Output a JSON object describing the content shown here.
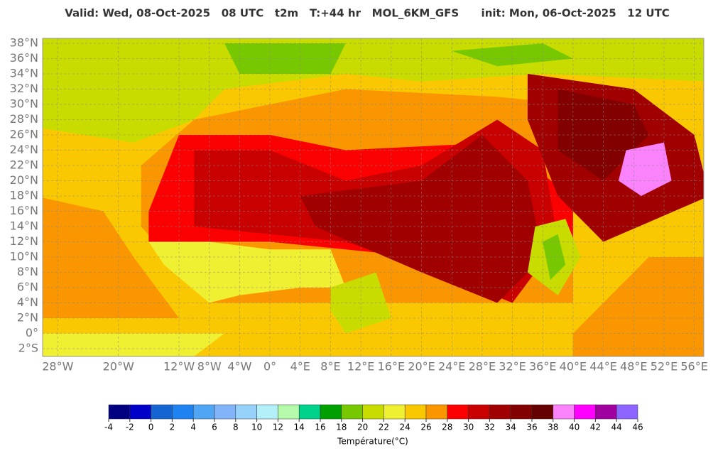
{
  "header": {
    "title": "Valid: Wed, 08-Oct-2025   08 UTC   t2m   T:+44 hr   MOL_6KM_GFS      init: Mon, 06-Oct-2025   12 UTC"
  },
  "map": {
    "lat_ticks": [
      {
        "value": 38,
        "label": "38°N"
      },
      {
        "value": 36,
        "label": "36°N"
      },
      {
        "value": 34,
        "label": "34°N"
      },
      {
        "value": 32,
        "label": "32°N"
      },
      {
        "value": 30,
        "label": "30°N"
      },
      {
        "value": 28,
        "label": "28°N"
      },
      {
        "value": 26,
        "label": "26°N"
      },
      {
        "value": 24,
        "label": "24°N"
      },
      {
        "value": 22,
        "label": "22°N"
      },
      {
        "value": 20,
        "label": "20°N"
      },
      {
        "value": 18,
        "label": "18°N"
      },
      {
        "value": 16,
        "label": "16°N"
      },
      {
        "value": 14,
        "label": "14°N"
      },
      {
        "value": 12,
        "label": "12°N"
      },
      {
        "value": 10,
        "label": "10°N"
      },
      {
        "value": 8,
        "label": "8°N"
      },
      {
        "value": 6,
        "label": "6°N"
      },
      {
        "value": 4,
        "label": "4°N"
      },
      {
        "value": 2,
        "label": "2°N"
      },
      {
        "value": 0,
        "label": "0°"
      },
      {
        "value": -2,
        "label": "2°S"
      }
    ],
    "lon_ticks": [
      {
        "value": -28,
        "label": "28°W"
      },
      {
        "value": -20,
        "label": "20°W"
      },
      {
        "value": -12,
        "label": "12°W"
      },
      {
        "value": -8,
        "label": "8°W"
      },
      {
        "value": -4,
        "label": "4°W"
      },
      {
        "value": 0,
        "label": "0°"
      },
      {
        "value": 4,
        "label": "4°E"
      },
      {
        "value": 8,
        "label": "8°E"
      },
      {
        "value": 12,
        "label": "12°E"
      },
      {
        "value": 16,
        "label": "16°E"
      },
      {
        "value": 20,
        "label": "20°E"
      },
      {
        "value": 24,
        "label": "24°E"
      },
      {
        "value": 28,
        "label": "28°E"
      },
      {
        "value": 32,
        "label": "32°E"
      },
      {
        "value": 36,
        "label": "36°E"
      },
      {
        "value": 40,
        "label": "40°E"
      },
      {
        "value": 44,
        "label": "44°E"
      },
      {
        "value": 48,
        "label": "48°E"
      },
      {
        "value": 52,
        "label": "52°E"
      },
      {
        "value": 56,
        "label": "56°E"
      }
    ]
  },
  "colorbar": {
    "ticks": [
      -4,
      -2,
      0,
      2,
      4,
      6,
      8,
      10,
      12,
      14,
      16,
      18,
      20,
      22,
      24,
      26,
      28,
      30,
      32,
      34,
      36,
      38,
      40,
      42,
      44,
      46
    ],
    "colors": [
      "#000080",
      "#0000c8",
      "#1464d2",
      "#1e82f0",
      "#50a5f5",
      "#82b4fa",
      "#96d2fa",
      "#b4f0fa",
      "#b4faaa",
      "#00d28c",
      "#00a000",
      "#78c800",
      "#c8dc00",
      "#f0f032",
      "#fac800",
      "#fa9600",
      "#fa0000",
      "#c80000",
      "#a00000",
      "#820000",
      "#640000",
      "#fa82fa",
      "#ff00ff",
      "#a000a0",
      "#8c64ff"
    ],
    "label": "Température(°C)"
  }
}
